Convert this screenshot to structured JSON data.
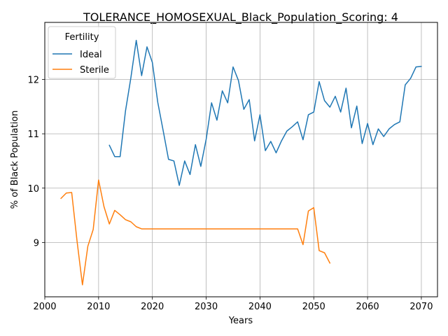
{
  "chart_data": {
    "type": "line",
    "title": "TOLERANCE_HOMOSEXUAL_Black_Population_Scoring: 4",
    "xlabel": "Years",
    "ylabel": "% of Black Population",
    "xlim": [
      2000,
      2073
    ],
    "ylim": [
      8.0,
      13.05
    ],
    "xticks": [
      2000,
      2010,
      2020,
      2030,
      2040,
      2050,
      2060,
      2070
    ],
    "yticks": [
      9,
      10,
      11,
      12
    ],
    "grid": true,
    "legend": {
      "title": "Fertility",
      "placement": "top-left"
    },
    "series": [
      {
        "name": "Ideal",
        "color": "#1f77b4",
        "x": [
          2012,
          2013,
          2014,
          2015,
          2016,
          2017,
          2018,
          2019,
          2020,
          2021,
          2022,
          2023,
          2024,
          2025,
          2026,
          2027,
          2028,
          2029,
          2030,
          2031,
          2032,
          2033,
          2034,
          2035,
          2036,
          2037,
          2038,
          2039,
          2040,
          2041,
          2042,
          2043,
          2044,
          2045,
          2046,
          2047,
          2048,
          2049,
          2050,
          2051,
          2052,
          2053,
          2054,
          2055,
          2056,
          2057,
          2058,
          2059,
          2060,
          2061,
          2062,
          2063,
          2064,
          2065,
          2066,
          2067,
          2068,
          2069,
          2070
        ],
        "y": [
          10.79,
          10.58,
          10.58,
          11.42,
          12.03,
          12.72,
          12.07,
          12.6,
          12.31,
          11.58,
          11.06,
          10.53,
          10.5,
          10.05,
          10.5,
          10.25,
          10.8,
          10.4,
          10.9,
          11.57,
          11.25,
          11.79,
          11.57,
          12.23,
          11.98,
          11.45,
          11.63,
          10.87,
          11.35,
          10.69,
          10.86,
          10.65,
          10.87,
          11.05,
          11.13,
          11.22,
          10.89,
          11.35,
          11.4,
          11.96,
          11.61,
          11.49,
          11.69,
          11.4,
          11.84,
          11.11,
          11.51,
          10.82,
          11.19,
          10.8,
          11.09,
          10.95,
          11.09,
          11.17,
          11.22,
          11.9,
          12.02,
          12.23,
          12.24
        ]
      },
      {
        "name": "Sterile",
        "color": "#ff7f0e",
        "x": [
          2003,
          2004,
          2005,
          2006,
          2007,
          2008,
          2009,
          2010,
          2011,
          2012,
          2013,
          2014,
          2015,
          2016,
          2017,
          2018,
          2019,
          2020,
          2021,
          2022,
          2023,
          2024,
          2025,
          2026,
          2027,
          2028,
          2029,
          2030,
          2031,
          2032,
          2033,
          2034,
          2035,
          2036,
          2037,
          2038,
          2039,
          2040,
          2041,
          2042,
          2043,
          2044,
          2045,
          2046,
          2047,
          2048,
          2049,
          2050,
          2051,
          2052,
          2053
        ],
        "y": [
          9.81,
          9.91,
          9.92,
          9.02,
          8.22,
          8.93,
          9.24,
          10.15,
          9.66,
          9.34,
          9.59,
          9.51,
          9.42,
          9.38,
          9.29,
          9.25,
          9.25,
          9.25,
          9.25,
          9.25,
          9.25,
          9.25,
          9.25,
          9.25,
          9.25,
          9.25,
          9.25,
          9.25,
          9.25,
          9.25,
          9.25,
          9.25,
          9.25,
          9.25,
          9.25,
          9.25,
          9.25,
          9.25,
          9.25,
          9.25,
          9.25,
          9.25,
          9.25,
          9.25,
          9.25,
          8.96,
          9.58,
          9.64,
          8.85,
          8.81,
          8.62
        ]
      }
    ]
  }
}
